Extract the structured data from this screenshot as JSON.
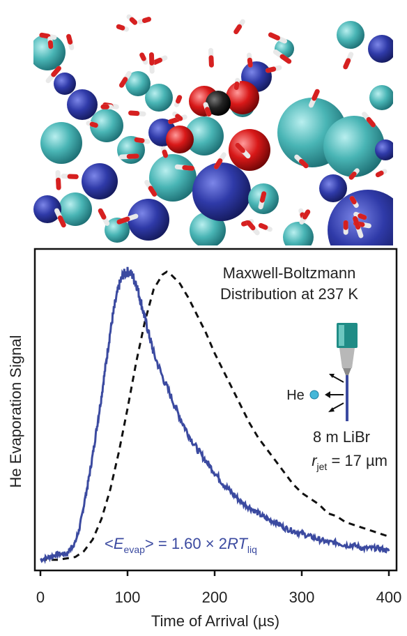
{
  "panel_image": {
    "icon": "molecular-dynamics-snapshot"
  },
  "chart_data": {
    "type": "line",
    "xlabel": "Time of Arrival (µs)",
    "ylabel": "He Evaporation Signal",
    "xlim": [
      0,
      400
    ],
    "xticks": [
      0,
      100,
      200,
      300,
      400
    ],
    "series": [
      {
        "style": "solid",
        "color": "#3b4aa0",
        "x": [
          0,
          10,
          20,
          30,
          35,
          40,
          45,
          50,
          55,
          60,
          65,
          70,
          75,
          80,
          85,
          90,
          95,
          100,
          105,
          110,
          115,
          120,
          125,
          130,
          140,
          150,
          160,
          170,
          180,
          190,
          200,
          210,
          220,
          230,
          240,
          250,
          260,
          270,
          280,
          290,
          300,
          310,
          320,
          330,
          340,
          350,
          360,
          370,
          380,
          390,
          400
        ],
        "y": [
          0.01,
          0.02,
          0.03,
          0.03,
          0.05,
          0.07,
          0.12,
          0.2,
          0.28,
          0.37,
          0.47,
          0.57,
          0.68,
          0.79,
          0.88,
          0.95,
          0.99,
          1.0,
          0.99,
          0.96,
          0.9,
          0.84,
          0.78,
          0.72,
          0.64,
          0.57,
          0.5,
          0.44,
          0.39,
          0.35,
          0.31,
          0.27,
          0.24,
          0.21,
          0.19,
          0.17,
          0.15,
          0.14,
          0.12,
          0.11,
          0.1,
          0.09,
          0.08,
          0.07,
          0.07,
          0.06,
          0.06,
          0.05,
          0.05,
          0.05,
          0.04
        ]
      },
      {
        "style": "dashed",
        "color": "#111111",
        "x": [
          0,
          20,
          40,
          50,
          60,
          70,
          80,
          90,
          100,
          110,
          120,
          130,
          140,
          145,
          150,
          160,
          170,
          180,
          190,
          200,
          210,
          220,
          230,
          240,
          250,
          260,
          270,
          280,
          290,
          300,
          310,
          320,
          330,
          340,
          350,
          360,
          370,
          380,
          390,
          400
        ],
        "y": [
          0.01,
          0.01,
          0.02,
          0.04,
          0.08,
          0.15,
          0.25,
          0.38,
          0.53,
          0.69,
          0.83,
          0.94,
          0.99,
          1.0,
          0.99,
          0.96,
          0.91,
          0.85,
          0.79,
          0.72,
          0.66,
          0.6,
          0.54,
          0.48,
          0.43,
          0.39,
          0.35,
          0.31,
          0.27,
          0.24,
          0.22,
          0.2,
          0.17,
          0.16,
          0.14,
          0.13,
          0.12,
          0.11,
          0.1,
          0.09
        ]
      }
    ],
    "annotations": {
      "mb_line1": "Maxwell-Boltzmann",
      "mb_line2": "Distribution at 237 K",
      "he": "He",
      "salt": "8 m LiBr",
      "rjet_r": "r",
      "rjet_sub": "jet",
      "rjet_val": " = 17 µm",
      "e_open": "<",
      "e_E": "E",
      "e_sub": "evap",
      "e_mid": "> = 1.60 × 2",
      "e_RT": "RT",
      "e_sub2": "liq"
    },
    "ylim": [
      0,
      1.04
    ]
  },
  "colors": {
    "solid": "#3b4aa0",
    "nozzle": "#1f8c86",
    "droplet": "#45b7d8"
  }
}
